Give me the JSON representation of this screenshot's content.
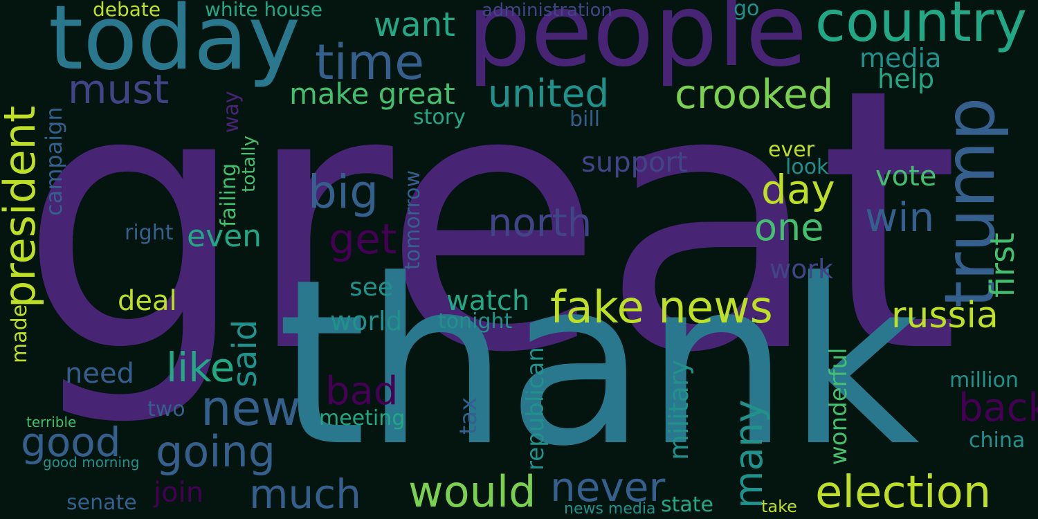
{
  "palette": {
    "background": "#04140f",
    "purple_dark": "#440154",
    "purple": "#482475",
    "indigo": "#414487",
    "blue": "#355f8d",
    "teal_blue": "#2a788e",
    "teal": "#21918c",
    "green_teal": "#22a884",
    "green": "#44bf70",
    "lime": "#7ad151",
    "yellow": "#bddf26",
    "bright_yellow": "#fde725"
  },
  "words": [
    "great",
    "thank",
    "people",
    "today",
    "trump",
    "country",
    "time",
    "president",
    "fake news",
    "election",
    "crooked",
    "united",
    "must",
    "make great",
    "want",
    "big",
    "day",
    "north",
    "one",
    "russia",
    "win",
    "first",
    "new",
    "going",
    "would",
    "never",
    "much",
    "many",
    "get",
    "bad",
    "good",
    "like",
    "said",
    "back",
    "support",
    "vote",
    "work",
    "watch",
    "world",
    "deal",
    "campaign",
    "even",
    "need",
    "military",
    "republican",
    "wonderful",
    "help",
    "media",
    "white house",
    "debate",
    "administration",
    "go",
    "join",
    "senate",
    "tomorrow",
    "meeting",
    "tax",
    "million",
    "china",
    "state",
    "take",
    "news media",
    "story",
    "bill",
    "see",
    "tonight",
    "look",
    "ever",
    "way",
    "failing",
    "totally",
    "right",
    "made",
    "two",
    "terrible",
    "good morning"
  ]
}
